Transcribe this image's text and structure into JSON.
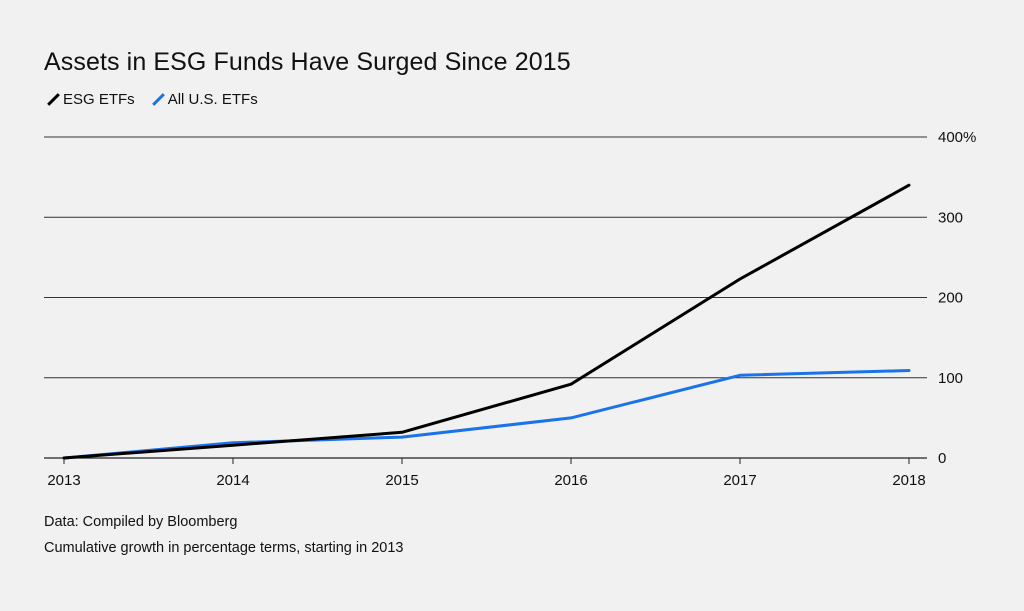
{
  "title": "Assets in ESG Funds Have Surged Since 2015",
  "source": "Data: Compiled by Bloomberg",
  "note": "Cumulative growth in percentage terms, starting in 2013",
  "legend": [
    {
      "label": "ESG ETFs",
      "color": "#000000"
    },
    {
      "label": "All U.S. ETFs",
      "color": "#1a73e8"
    }
  ],
  "chart_data": {
    "type": "line",
    "title": "Assets in ESG Funds Have Surged Since 2015",
    "x": [
      2013,
      2014,
      2015,
      2016,
      2017,
      2018
    ],
    "x_tick_labels": [
      "2013",
      "2014",
      "2015",
      "2016",
      "2017",
      "2018"
    ],
    "series": [
      {
        "name": "ESG ETFs",
        "color": "#000000",
        "values": [
          0,
          16,
          32,
          92,
          223,
          340
        ]
      },
      {
        "name": "All U.S. ETFs",
        "color": "#1a73e8",
        "values": [
          0,
          19,
          26,
          50,
          103,
          109
        ]
      }
    ],
    "ylim": [
      0,
      400
    ],
    "y_ticks": [
      0,
      100,
      200,
      300,
      400
    ],
    "y_tick_labels": [
      "0",
      "100",
      "200",
      "300",
      "400%"
    ],
    "y_axis_side": "right",
    "grid": true,
    "legend_position": "top-left"
  }
}
